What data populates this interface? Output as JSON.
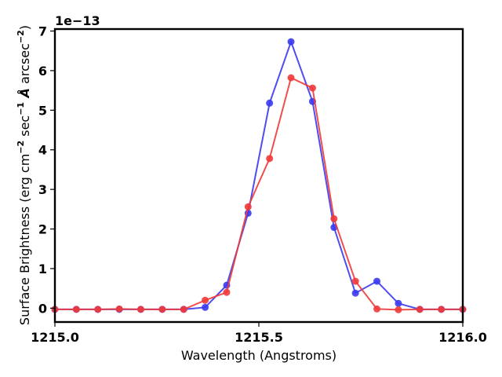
{
  "chart_data": {
    "type": "line",
    "title": "",
    "xlabel": "Wavelength (Angstroms)",
    "ylabel_parts": {
      "prefix": "Surface Brightness (erg cm",
      "exp1": "−2",
      "mid1": " sec",
      "exp2": "−1",
      "angstrom": " Å",
      "mid2": " arcsec",
      "exp3": "−2",
      "suffix": ")"
    },
    "y_offset_label": "1e−13",
    "xlim": [
      1215.0,
      1216.0
    ],
    "ylim": [
      -0.35,
      7.05
    ],
    "x_ticks": [
      1215.0,
      1215.5,
      1216.0
    ],
    "x_tick_labels": [
      "1215.0",
      "1215.5",
      "1216.0"
    ],
    "y_ticks": [
      0,
      1,
      2,
      3,
      4,
      5,
      6,
      7
    ],
    "y_tick_labels": [
      "0",
      "1",
      "2",
      "3",
      "4",
      "5",
      "6",
      "7"
    ],
    "x": [
      1215.0,
      1215.0526,
      1215.1053,
      1215.1579,
      1215.2105,
      1215.2632,
      1215.3158,
      1215.3684,
      1215.4211,
      1215.4737,
      1215.5263,
      1215.5789,
      1215.6316,
      1215.6842,
      1215.7368,
      1215.7895,
      1215.8421,
      1215.8947,
      1215.9474,
      1216.0
    ],
    "series": [
      {
        "name": "blue",
        "color": "#3a3af0",
        "values": [
          -0.03,
          -0.03,
          -0.03,
          -0.03,
          -0.03,
          -0.03,
          -0.03,
          0.02,
          0.58,
          2.4,
          5.18,
          6.73,
          5.22,
          2.04,
          0.38,
          0.68,
          0.12,
          -0.03,
          -0.03,
          -0.03
        ]
      },
      {
        "name": "red",
        "color": "#f03a3a",
        "values": [
          -0.03,
          -0.03,
          -0.03,
          -0.02,
          -0.03,
          -0.03,
          -0.03,
          0.2,
          0.4,
          2.56,
          3.78,
          5.82,
          5.56,
          2.26,
          0.68,
          -0.02,
          -0.04,
          -0.03,
          -0.03,
          -0.03
        ]
      }
    ]
  }
}
